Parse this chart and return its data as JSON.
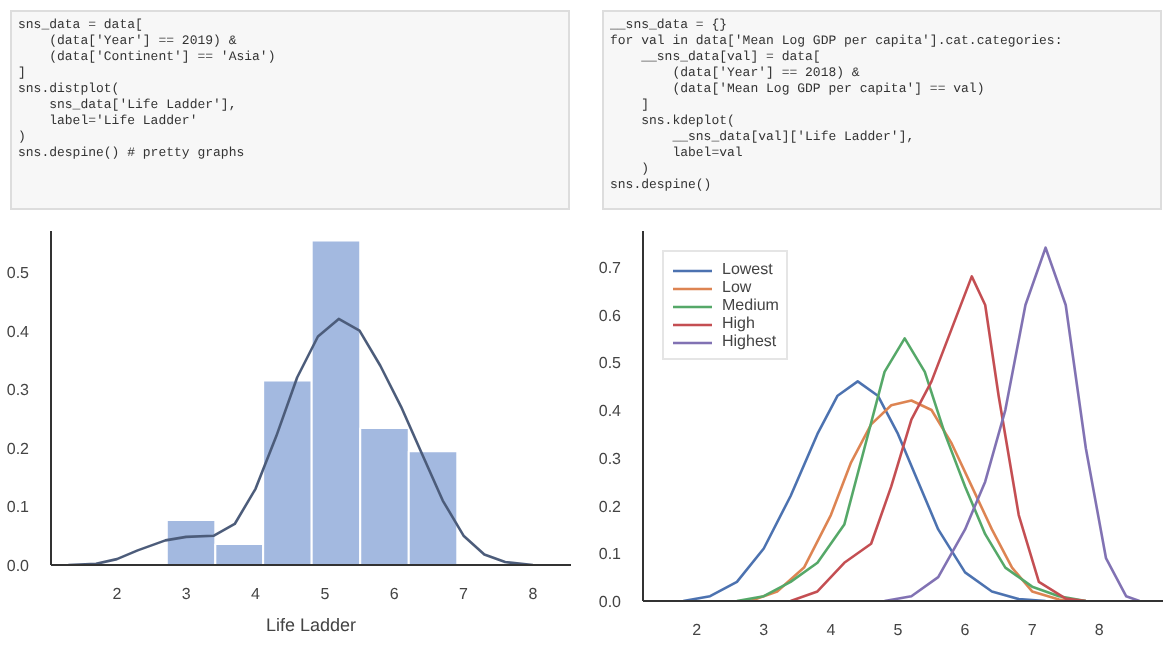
{
  "chart_data": [
    {
      "type": "histogram",
      "xlabel": "Life Ladder",
      "xlim": [
        1.05,
        8.55
      ],
      "ylim": [
        0,
        0.57
      ],
      "xticks": [
        2,
        3,
        4,
        5,
        6,
        7,
        8
      ],
      "yticks": [
        {
          "value": 0,
          "label": "0.0"
        },
        0.1,
        0.2,
        0.3,
        0.4,
        0.5
      ],
      "grid": false,
      "legend": false,
      "series": [
        {
          "type": "histogram",
          "color": "#a3b9e0",
          "bins": [
            2.72,
            3.42,
            4.11,
            4.81,
            5.51,
            6.21,
            6.91
          ],
          "values": [
            0.077,
            0.036,
            0.315,
            0.554,
            0.234,
            0.194
          ]
        },
        {
          "type": "line",
          "color": "#4c5c7a",
          "x": [
            1.3,
            1.7,
            2.0,
            2.3,
            2.7,
            3.0,
            3.4,
            3.7,
            4.0,
            4.3,
            4.6,
            4.9,
            5.2,
            5.5,
            5.8,
            6.1,
            6.4,
            6.7,
            7.0,
            7.3,
            7.6,
            8.0
          ],
          "values": [
            0,
            0.002,
            0.01,
            0.025,
            0.042,
            0.048,
            0.05,
            0.07,
            0.13,
            0.22,
            0.32,
            0.39,
            0.42,
            0.4,
            0.34,
            0.27,
            0.19,
            0.11,
            0.05,
            0.018,
            0.005,
            0
          ]
        }
      ],
      "annotations": [
        "sns_data = data[",
        "    (data['Year'] == 2019) &",
        "    (data['Continent'] == 'Asia')",
        "]",
        "sns.distplot(",
        "    sns_data['Life Ladder'],",
        "    label='Life Ladder'",
        ")",
        "sns.despine() # pretty graphs"
      ]
    },
    {
      "type": "line",
      "xlim": [
        1.2,
        8.95
      ],
      "ylim": [
        0,
        0.775
      ],
      "xticks": [
        2,
        3,
        4,
        5,
        6,
        7,
        8
      ],
      "yticks": [
        {
          "value": 0,
          "label": "0.0"
        },
        0.1,
        0.2,
        0.3,
        0.4,
        0.5,
        0.6,
        0.7
      ],
      "grid": false,
      "legend": "top left",
      "series": [
        {
          "name": "Lowest",
          "color": "#4c72b0",
          "x": [
            1.8,
            2.2,
            2.6,
            3.0,
            3.4,
            3.8,
            4.1,
            4.4,
            4.7,
            5.0,
            5.3,
            5.6,
            6.0,
            6.4,
            6.8,
            7.2
          ],
          "values": [
            0,
            0.01,
            0.04,
            0.11,
            0.22,
            0.35,
            0.43,
            0.46,
            0.43,
            0.35,
            0.25,
            0.15,
            0.06,
            0.02,
            0.004,
            0
          ]
        },
        {
          "name": "Low",
          "color": "#dd8452",
          "x": [
            2.8,
            3.2,
            3.6,
            4.0,
            4.3,
            4.6,
            4.9,
            5.2,
            5.5,
            5.8,
            6.1,
            6.4,
            6.7,
            7.0,
            7.4,
            7.8
          ],
          "values": [
            0,
            0.02,
            0.07,
            0.18,
            0.29,
            0.37,
            0.41,
            0.42,
            0.4,
            0.33,
            0.24,
            0.15,
            0.07,
            0.02,
            0.003,
            0
          ]
        },
        {
          "name": "Medium",
          "color": "#55a868",
          "x": [
            2.6,
            3.0,
            3.4,
            3.8,
            4.2,
            4.5,
            4.8,
            5.1,
            5.4,
            5.7,
            6.0,
            6.3,
            6.6,
            7.0,
            7.4,
            7.8
          ],
          "values": [
            0,
            0.01,
            0.04,
            0.08,
            0.16,
            0.32,
            0.48,
            0.55,
            0.48,
            0.35,
            0.24,
            0.14,
            0.07,
            0.03,
            0.01,
            0
          ]
        },
        {
          "name": "High",
          "color": "#c44e52",
          "x": [
            3.4,
            3.8,
            4.2,
            4.6,
            4.9,
            5.2,
            5.5,
            5.8,
            6.1,
            6.3,
            6.5,
            6.8,
            7.1,
            7.5,
            7.8
          ],
          "values": [
            0,
            0.02,
            0.08,
            0.12,
            0.24,
            0.38,
            0.46,
            0.57,
            0.68,
            0.62,
            0.43,
            0.18,
            0.04,
            0.005,
            0
          ]
        },
        {
          "name": "Highest",
          "color": "#8172b3",
          "x": [
            4.8,
            5.2,
            5.6,
            6.0,
            6.3,
            6.6,
            6.9,
            7.2,
            7.5,
            7.8,
            8.1,
            8.4,
            8.6
          ],
          "values": [
            0,
            0.01,
            0.05,
            0.15,
            0.25,
            0.4,
            0.62,
            0.74,
            0.62,
            0.32,
            0.09,
            0.01,
            0
          ]
        }
      ],
      "annotations": [
        "__sns_data = {}",
        "for val in data['Mean Log GDP per capita'].cat.categories:",
        "    __sns_data[val] = data[",
        "        (data['Year'] == 2018) &",
        "        (data['Mean Log GDP per capita'] == val)",
        "    ]",
        "    sns.kdeplot(",
        "        __sns_data[val]['Life Ladder'],",
        "        label=val",
        "    )",
        "sns.despine()"
      ]
    }
  ]
}
